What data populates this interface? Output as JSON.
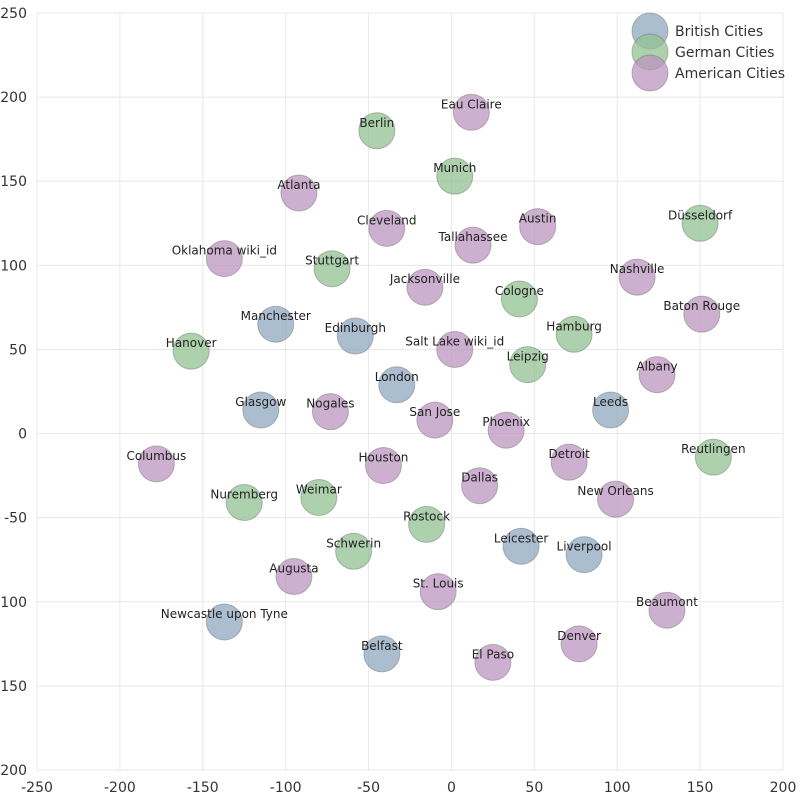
{
  "chart_data": {
    "type": "scatter",
    "xlim": [
      -250,
      200
    ],
    "ylim": [
      -200,
      250
    ],
    "x_ticks": [
      -250,
      -200,
      -150,
      -100,
      -50,
      0,
      50,
      100,
      150,
      200
    ],
    "y_ticks": [
      -200,
      -150,
      -100,
      -50,
      0,
      50,
      100,
      150,
      200,
      250
    ],
    "grid": true,
    "legend_position": "top-right",
    "series": [
      {
        "name": "British Cities",
        "color": "#8fa8bf",
        "points": [
          {
            "label": "Manchester",
            "x": -106,
            "y": 65
          },
          {
            "label": "Edinburgh",
            "x": -58,
            "y": 58
          },
          {
            "label": "London",
            "x": -33,
            "y": 29
          },
          {
            "label": "Glasgow",
            "x": -115,
            "y": 14
          },
          {
            "label": "Leeds",
            "x": 96,
            "y": 14
          },
          {
            "label": "Leicester",
            "x": 42,
            "y": -67
          },
          {
            "label": "Liverpool",
            "x": 80,
            "y": -72
          },
          {
            "label": "Newcastle upon Tyne",
            "x": -137,
            "y": -112
          },
          {
            "label": "Belfast",
            "x": -42,
            "y": -131
          }
        ]
      },
      {
        "name": "German Cities",
        "color": "#92c091",
        "points": [
          {
            "label": "Berlin",
            "x": -45,
            "y": 180
          },
          {
            "label": "Munich",
            "x": 2,
            "y": 153
          },
          {
            "label": "Düsseldorf",
            "x": 150,
            "y": 125
          },
          {
            "label": "Stuttgart",
            "x": -72,
            "y": 98
          },
          {
            "label": "Cologne",
            "x": 41,
            "y": 80
          },
          {
            "label": "Hamburg",
            "x": 74,
            "y": 59
          },
          {
            "label": "Hanover",
            "x": -157,
            "y": 49
          },
          {
            "label": "Leipzig",
            "x": 46,
            "y": 41
          },
          {
            "label": "Reutlingen",
            "x": 158,
            "y": -14
          },
          {
            "label": "Nuremberg",
            "x": -125,
            "y": -41
          },
          {
            "label": "Weimar",
            "x": -80,
            "y": -38
          },
          {
            "label": "Rostock",
            "x": -15,
            "y": -54
          },
          {
            "label": "Schwerin",
            "x": -59,
            "y": -70
          }
        ]
      },
      {
        "name": "American Cities",
        "color": "#bc95bf",
        "points": [
          {
            "label": "Eau Claire",
            "x": 12,
            "y": 191
          },
          {
            "label": "Atlanta",
            "x": -92,
            "y": 143
          },
          {
            "label": "Cleveland",
            "x": -39,
            "y": 122
          },
          {
            "label": "Austin",
            "x": 52,
            "y": 123
          },
          {
            "label": "Tallahassee",
            "x": 13,
            "y": 112
          },
          {
            "label": "Oklahoma wiki_id",
            "x": -137,
            "y": 104
          },
          {
            "label": "Jacksonville",
            "x": -16,
            "y": 87
          },
          {
            "label": "Nashville",
            "x": 112,
            "y": 93
          },
          {
            "label": "Baton Rouge",
            "x": 151,
            "y": 71
          },
          {
            "label": "Salt Lake wiki_id",
            "x": 2,
            "y": 50
          },
          {
            "label": "Albany",
            "x": 124,
            "y": 35
          },
          {
            "label": "Nogales",
            "x": -73,
            "y": 13
          },
          {
            "label": "San Jose",
            "x": -10,
            "y": 8
          },
          {
            "label": "Phoenix",
            "x": 33,
            "y": 2
          },
          {
            "label": "Columbus",
            "x": -178,
            "y": -18
          },
          {
            "label": "Houston",
            "x": -41,
            "y": -19
          },
          {
            "label": "Detroit",
            "x": 71,
            "y": -17
          },
          {
            "label": "Dallas",
            "x": 17,
            "y": -31
          },
          {
            "label": "New Orleans",
            "x": 99,
            "y": -39
          },
          {
            "label": "Augusta",
            "x": -95,
            "y": -85
          },
          {
            "label": "St. Louis",
            "x": -8,
            "y": -94
          },
          {
            "label": "Beaumont",
            "x": 130,
            "y": -105
          },
          {
            "label": "Denver",
            "x": 77,
            "y": -125
          },
          {
            "label": "El Paso",
            "x": 25,
            "y": -136
          }
        ]
      }
    ]
  }
}
